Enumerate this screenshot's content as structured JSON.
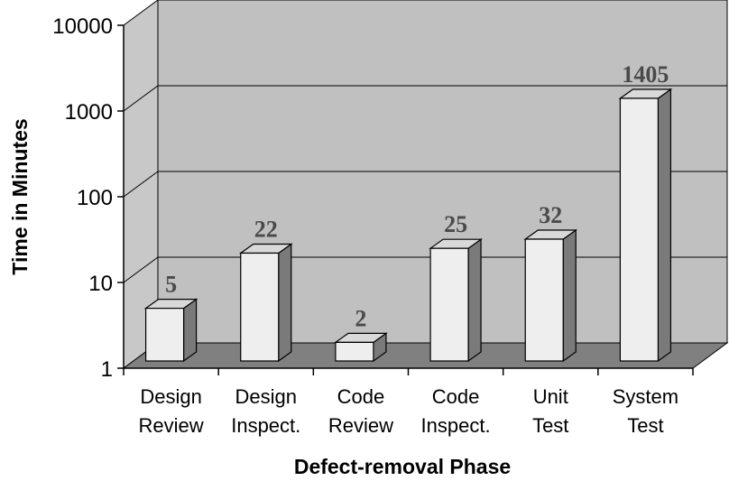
{
  "chart_data": {
    "type": "bar",
    "title": "",
    "xlabel": "Defect-removal Phase",
    "ylabel": "Time in Minutes",
    "y_scale": "log",
    "ylim": [
      1,
      10000
    ],
    "yticks": [
      "1",
      "10",
      "100",
      "1000",
      "10000"
    ],
    "categories": [
      [
        "Design",
        "Review"
      ],
      [
        "Design",
        "Inspect."
      ],
      [
        "Code",
        "Review"
      ],
      [
        "Code",
        "Inspect."
      ],
      [
        "Unit",
        "Test"
      ],
      [
        "System",
        "Test"
      ]
    ],
    "values": [
      5,
      22,
      2,
      25,
      32,
      1405
    ],
    "data_labels": [
      "5",
      "22",
      "2",
      "25",
      "32",
      "1405"
    ],
    "grid": true,
    "style": "3d-column",
    "colors": {
      "bar_front": "#eeeeee",
      "bar_top": "#d9d9d9",
      "bar_side": "#7a7a7a",
      "back_wall": "#c0c0c0",
      "side_wall": "#c8c8c8",
      "floor": "#808080"
    }
  }
}
